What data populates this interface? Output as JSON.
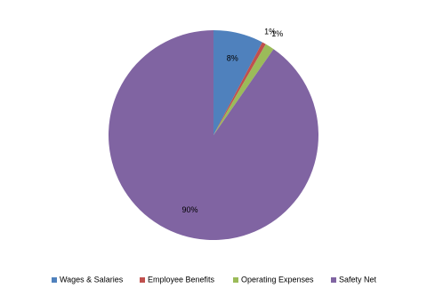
{
  "chart_data": {
    "type": "pie",
    "categories": [
      "Wages & Salaries",
      "Employee Benefits",
      "Operating Expenses",
      "Safety Net"
    ],
    "values": [
      7.7,
      0.6,
      1.4,
      90.3
    ],
    "value_labels": [
      "8%",
      "1%",
      "1%",
      "90%"
    ],
    "colors": [
      "#4f81bd",
      "#c0504d",
      "#9bbb59",
      "#8064a2"
    ],
    "legend": "bottom"
  }
}
